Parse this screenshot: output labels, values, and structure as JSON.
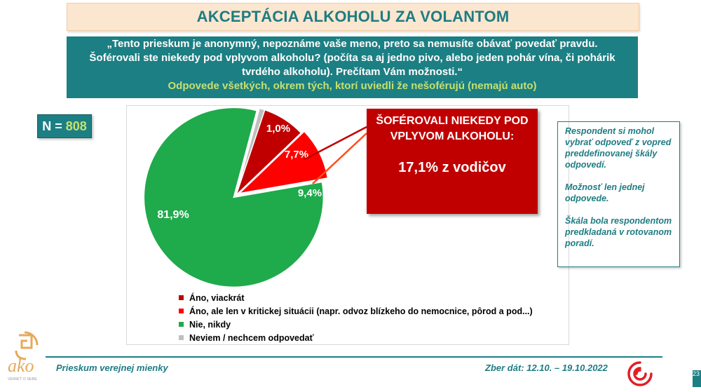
{
  "title": "AKCEPTÁCIA ALKOHOLU ZA VOLANTOM",
  "question": {
    "text": "„Tento prieskum je anonymný, nepoznáme vaše meno, preto sa nemusíte obávať povedať pravdu. Šoférovali ste niekedy pod vplyvom alkoholu? (počíta sa aj jedno pivo, alebo jeden pohár vína, či pohárik tvrdého alkoholu). Prečítam Vám možnosti.“",
    "note": "Odpovede všetkých, okrem tých, ktorí uviedli že nešoférujú (nemajú auto)"
  },
  "sample": {
    "label": "N =",
    "value": "808"
  },
  "callout": {
    "heading": "ŠOFÉROVALI NIEKEDY POD VPLYVOM ALKOHOLU:",
    "value": "17,1% z vodičov"
  },
  "side_note": {
    "p1": "Respondent si mohol vybrať odpoveď z vopred preddefinovanej škály odpovedí.",
    "p2": "Možnosť len jednej odpovede.",
    "p3": "Škála bola respondentom predkladaná v rotovanom poradí."
  },
  "footer": {
    "left": "Prieskum verejnej mienky",
    "right": "Zber dát: 12.10. – 19.10.2022",
    "page": "23"
  },
  "logo": {
    "name": "ako",
    "tagline": "VERIEŤ O SEBE"
  },
  "chart_data": {
    "type": "pie",
    "title": "",
    "categories": [
      "Áno, viackrát",
      "Áno, ale len v kritickej situácii (napr. odvoz blízkeho do nemocnice, pôrod a pod...)",
      "Nie, nikdy",
      "Neviem / nechcem odpovedať"
    ],
    "values": [
      7.7,
      9.4,
      81.9,
      1.0
    ],
    "labels": [
      "7,7%",
      "9,4%",
      "81,9%",
      "1,0%"
    ],
    "colors": [
      "#c00000",
      "#ff0000",
      "#1faa4b",
      "#bfbfbf"
    ],
    "legend_position": "bottom"
  },
  "colors": {
    "accent": "#1c7f83",
    "highlight": "#c6e06f",
    "callout": "#c00000"
  }
}
